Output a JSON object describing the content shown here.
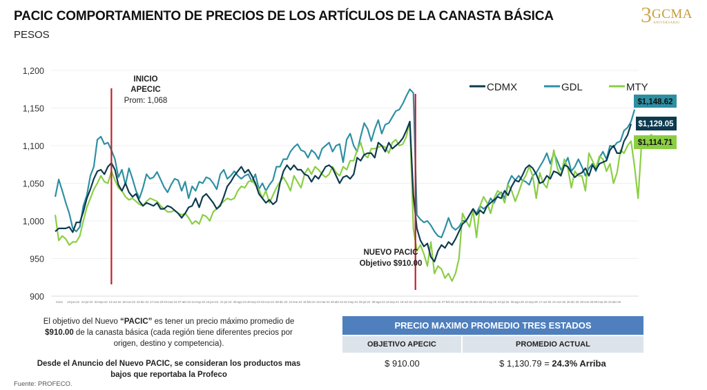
{
  "header": {
    "title": "PACIC COMPORTAMIENTO DE PRECIOS DE LOS ARTÍCULOS DE LA CANASTA BÁSICA",
    "subtitle": "PESOS"
  },
  "logo": {
    "number": "3",
    "brand": "GCMA",
    "tagline": "ANIVERSARIO"
  },
  "chart_data": {
    "type": "line",
    "title": "PACIC COMPORTAMIENTO DE PRECIOS DE LOS ARTÍCULOS DE LA CANASTA BÁSICA",
    "ylabel": "PESOS",
    "xlabel": "",
    "ylim": [
      900,
      1200
    ],
    "yticks": [
      900,
      950,
      1000,
      1050,
      1100,
      1150,
      1200
    ],
    "ytick_labels": [
      "900",
      "950",
      "1,000",
      "1,050",
      "1,100",
      "1,150",
      "1,200"
    ],
    "grid": true,
    "legend_position": "top-right",
    "xtick_labels": [
      "Inicio",
      "10-jun-22",
      "22-jul-22",
      "02-sep-22",
      "14-oct-22",
      "18-nov-22",
      "23-dic-22",
      "27-ene-23",
      "03-mar-23",
      "07-abr-23",
      "12-may-23",
      "16-jun-23",
      "21-jul-23",
      "25-ago-23",
      "29-sep-23",
      "03-nov-23",
      "08-dic-23",
      "12-ene-24",
      "16-feb-24",
      "22-mar-24",
      "26-abr-24",
      "31-may-24",
      "05-jul-24",
      "09-ago-24",
      "13-sep-24",
      "18-oct-24",
      "22-nov-24",
      "03-ene-25",
      "07-feb-25",
      "21-mar-25",
      "25-abr-25",
      "30-may-25",
      "04-jul-25",
      "08-ago-25",
      "12-sep-25",
      "17-oct-25",
      "21-nov-25",
      "26-dic-25",
      "30-ene-26",
      "06-mar-26",
      "10-abr-26"
    ],
    "series": [
      {
        "name": "CDMX",
        "color": "#0d3a4f",
        "last_label": "$1,129.05",
        "values": [
          986,
          990,
          990,
          990,
          992,
          985,
          998,
          998,
          1012,
          1030,
          1042,
          1056,
          1066,
          1068,
          1062,
          1072,
          1077,
          1068,
          1048,
          1040,
          1050,
          1038,
          1032,
          1036,
          1026,
          1020,
          1024,
          1022,
          1020,
          1024,
          1016,
          1016,
          1020,
          1018,
          1014,
          1010,
          1004,
          1010,
          1018,
          1020,
          1030,
          1018,
          1032,
          1036,
          1030,
          1024,
          1016,
          1020,
          1032,
          1046,
          1052,
          1060,
          1066,
          1072,
          1064,
          1068,
          1060,
          1050,
          1036,
          1030,
          1024,
          1028,
          1022,
          1026,
          1050,
          1066,
          1074,
          1068,
          1074,
          1068,
          1068,
          1062,
          1060,
          1052,
          1060,
          1056,
          1064,
          1072,
          1074,
          1070,
          1060,
          1050,
          1058,
          1060,
          1056,
          1062,
          1084,
          1080,
          1088,
          1090,
          1090,
          1084,
          1104,
          1100,
          1092,
          1104,
          1096,
          1100,
          1104,
          1110,
          1120,
          1132,
          1034,
          990,
          974,
          966,
          970,
          952,
          946,
          960,
          968,
          964,
          972,
          968,
          976,
          986,
          996,
          1000,
          1008,
          1016,
          1008,
          1014,
          1010,
          1020,
          1024,
          1028,
          1032,
          1030,
          1040,
          1034,
          1046,
          1054,
          1052,
          1060,
          1070,
          1074,
          1070,
          1062,
          1050,
          1052,
          1060,
          1056,
          1066,
          1064,
          1060,
          1074,
          1072,
          1064,
          1058,
          1062,
          1064,
          1070,
          1060,
          1074,
          1068,
          1076,
          1078,
          1080,
          1094,
          1100,
          1090,
          1090,
          1106,
          1114,
          1129
        ]
      },
      {
        "name": "GDL",
        "color": "#2e8fa3",
        "last_label": "$1,148.62",
        "values": [
          1032,
          1055,
          1040,
          1024,
          1010,
          990,
          986,
          992,
          1020,
          1034,
          1060,
          1072,
          1108,
          1112,
          1102,
          1104,
          1094,
          1082,
          1058,
          1068,
          1048,
          1070,
          1056,
          1040,
          1030,
          1044,
          1062,
          1056,
          1058,
          1065,
          1055,
          1045,
          1038,
          1048,
          1056,
          1054,
          1040,
          1052,
          1030,
          1046,
          1040,
          1052,
          1050,
          1058,
          1056,
          1050,
          1042,
          1062,
          1068,
          1056,
          1060,
          1066,
          1060,
          1056,
          1060,
          1062,
          1052,
          1062,
          1042,
          1050,
          1040,
          1048,
          1054,
          1072,
          1072,
          1082,
          1082,
          1092,
          1098,
          1102,
          1094,
          1092,
          1084,
          1094,
          1090,
          1082,
          1096,
          1100,
          1104,
          1092,
          1100,
          1102,
          1078,
          1108,
          1116,
          1100,
          1092,
          1112,
          1130,
          1122,
          1106,
          1122,
          1134,
          1116,
          1128,
          1130,
          1138,
          1146,
          1148,
          1156,
          1166,
          1175,
          1170,
          1008,
          1002,
          998,
          1000,
          994,
          986,
          980,
          978,
          990,
          1004,
          992,
          988,
          992,
          1000,
          1000,
          1008,
          1016,
          1010,
          1020,
          1016,
          1020,
          1030,
          1024,
          1034,
          1038,
          1030,
          1050,
          1060,
          1054,
          1060,
          1054,
          1052,
          1048,
          1060,
          1064,
          1072,
          1080,
          1090,
          1076,
          1090,
          1080,
          1068,
          1074,
          1084,
          1066,
          1072,
          1082,
          1072,
          1060,
          1070,
          1076,
          1066,
          1084,
          1092,
          1082,
          1100,
          1098,
          1104,
          1106,
          1120,
          1124,
          1132,
          1148
        ]
      },
      {
        "name": "MTY",
        "color": "#8bce45",
        "last_label": "$1,114.71",
        "values": [
          1008,
          974,
          980,
          976,
          968,
          972,
          972,
          980,
          1000,
          1018,
          1030,
          1042,
          1050,
          1060,
          1052,
          1050,
          1066,
          1054,
          1044,
          1040,
          1032,
          1028,
          1030,
          1026,
          1022,
          1020,
          1026,
          1030,
          1028,
          1026,
          1020,
          1016,
          1012,
          1012,
          1014,
          1010,
          1008,
          1010,
          1004,
          996,
          1000,
          996,
          1008,
          1006,
          1000,
          1012,
          1016,
          1022,
          1026,
          1030,
          1028,
          1030,
          1040,
          1046,
          1044,
          1052,
          1054,
          1048,
          1042,
          1030,
          1040,
          1024,
          1034,
          1044,
          1052,
          1058,
          1050,
          1040,
          1060,
          1052,
          1044,
          1062,
          1070,
          1062,
          1072,
          1068,
          1062,
          1058,
          1062,
          1072,
          1064,
          1060,
          1072,
          1068,
          1080,
          1080,
          1094,
          1104,
          1088,
          1084,
          1096,
          1096,
          1098,
          1100,
          1098,
          1090,
          1104,
          1108,
          1100,
          1102,
          1112,
          1132,
          990,
          960,
          968,
          956,
          940,
          972,
          930,
          940,
          936,
          924,
          930,
          920,
          930,
          950,
          1010,
          1000,
          992,
          1014,
          978,
          1020,
          1032,
          1024,
          1010,
          1030,
          1040,
          1036,
          1024,
          1048,
          1040,
          1026,
          1038,
          1052,
          1060,
          1072,
          1060,
          1030,
          1064,
          1050,
          1044,
          1064,
          1094,
          1070,
          1060,
          1082,
          1070,
          1044,
          1066,
          1060,
          1060,
          1040,
          1090,
          1080,
          1070,
          1086,
          1082,
          1066,
          1076,
          1050,
          1064,
          1094,
          1090,
          1100,
          1106,
          1072,
          1030,
          1104,
          1108,
          1112,
          1115
        ]
      }
    ],
    "annotations": [
      {
        "title": "INICIO APECIC",
        "line1": "INICIO",
        "line2": "APECIC",
        "line3": "Prom: 1,068",
        "marker_at_index": 16
      },
      {
        "title": "NUEVO PACIC",
        "line1": "NUEVO PACIC",
        "line2": "Objetivo $910.00",
        "marker_at_index": 102
      }
    ],
    "reference_lines": [
      {
        "label": "Inicio APECIC",
        "color": "#c0202a"
      },
      {
        "label": "Nuevo PACIC",
        "color": "#c0202a"
      }
    ]
  },
  "notes": {
    "paragraph_pre": "El objetivo del Nuevo ",
    "paragraph_bold": "“PACIC”",
    "paragraph_mid": " es tener un precio máximo promedio de ",
    "paragraph_bold2": "$910.00",
    "paragraph_post": " de la canasta básica (cada región tiene diferentes precios por origen, destino y competencia).",
    "emphasis": "Desde el Anuncio del Nuevo PACIC, se consideran los productos mas bajos que reportaba la Profeco",
    "source": "Fuente: PROFECO."
  },
  "price_table": {
    "header": "PRECIO MAXIMO PROMEDIO TRES ESTADOS",
    "columns": [
      "OBJETIVO APECIC",
      "PROMEDIO ACTUAL"
    ],
    "target_value": "$ 910.00",
    "current_value": "$ 1,130.79  =  ",
    "difference": "24.3% Arriba"
  }
}
